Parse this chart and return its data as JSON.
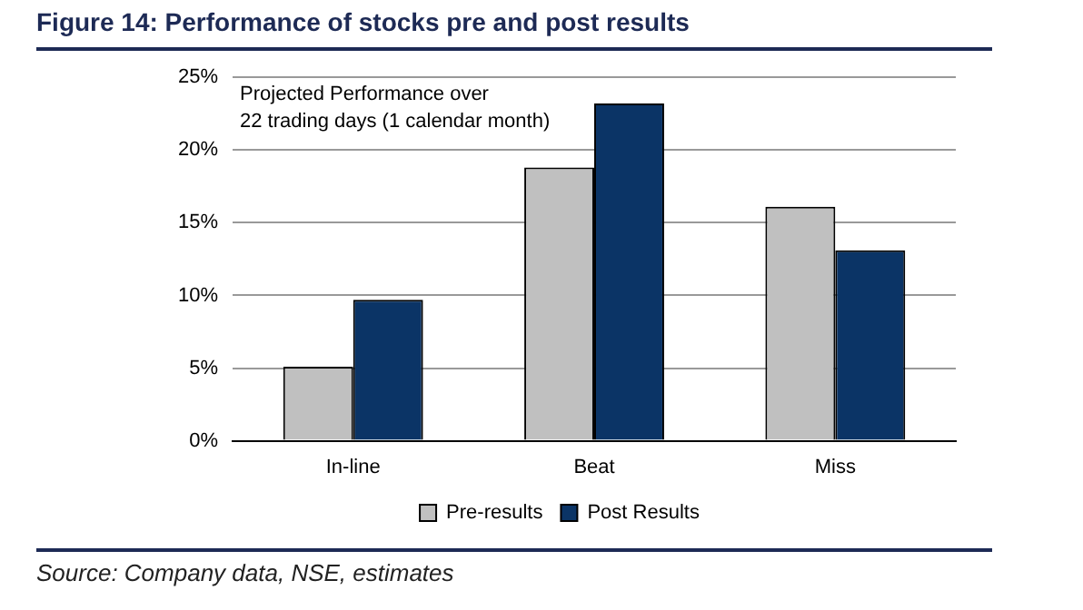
{
  "chart_data": {
    "type": "bar",
    "title": "Figure 14: Performance of stocks pre and post results",
    "categories": [
      "In-line",
      "Beat",
      "Miss"
    ],
    "series": [
      {
        "name": "Pre-results",
        "color": "#c0c0c0",
        "values": [
          5.1,
          18.8,
          16.1
        ]
      },
      {
        "name": "Post Results",
        "color": "#0b3466",
        "values": [
          9.7,
          23.2,
          13.1
        ]
      }
    ],
    "ylim": [
      0,
      25
    ],
    "yticks": [
      {
        "value": 0,
        "label": "0%"
      },
      {
        "value": 5,
        "label": "5%"
      },
      {
        "value": 10,
        "label": "10%"
      },
      {
        "value": 15,
        "label": "15%"
      },
      {
        "value": 20,
        "label": "20%"
      },
      {
        "value": 25,
        "label": "25%"
      }
    ],
    "grid": "y",
    "legend": "bottom",
    "annotations": [
      "Projected Performance over\n22 trading days (1 calendar month)",
      "Source: Company data, NSE, estimates"
    ]
  }
}
